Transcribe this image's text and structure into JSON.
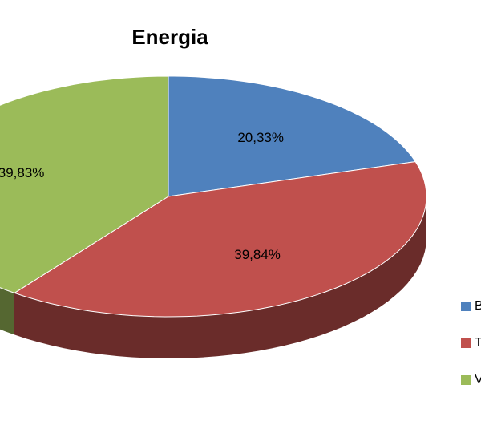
{
  "chart_data": {
    "type": "pie3d",
    "title": "Energia",
    "categories": [
      "B",
      "T",
      "V"
    ],
    "values": [
      20.33,
      39.84,
      39.83
    ],
    "value_labels": [
      "20,33%",
      "39,84%",
      "39,83%"
    ],
    "colors": [
      "#4f81bd",
      "#c0504d",
      "#9bbb59"
    ],
    "legend": "right"
  }
}
